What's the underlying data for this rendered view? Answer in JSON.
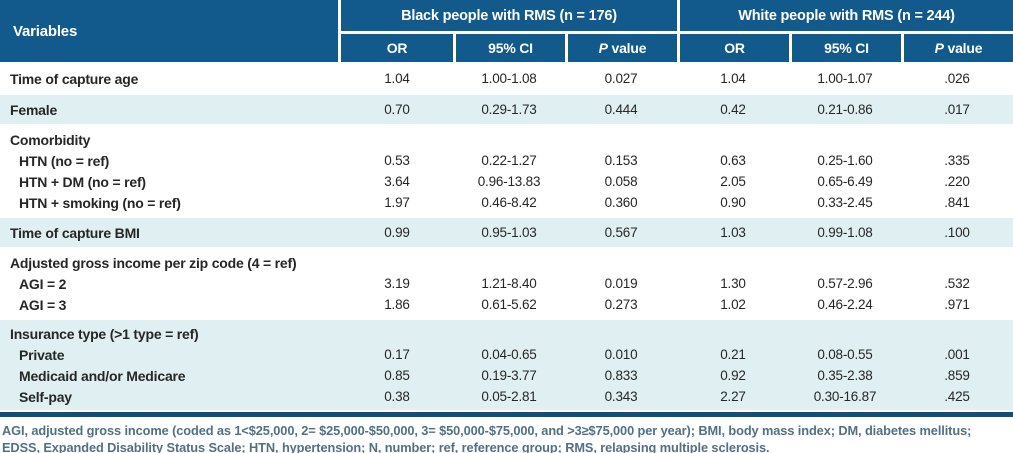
{
  "colors": {
    "header_blue": "#12598C",
    "band_tint": "#E0F0F2",
    "rule_blue": "#114E79",
    "footnote_text": "#527084"
  },
  "table": {
    "header": {
      "variables_label": "Variables",
      "groups": [
        {
          "label": "Black people with RMS (n = 176)",
          "cols": [
            "OR",
            "95% CI",
            "P value"
          ]
        },
        {
          "label": "White people with RMS (n = 244)",
          "cols": [
            "OR",
            "95% CI",
            "P value"
          ]
        }
      ]
    },
    "sections": [
      {
        "shade": "white",
        "lines": [
          {
            "label": "Time of capture age",
            "indent": 0,
            "values": [
              "1.04",
              "1.00-1.08",
              "0.027",
              "1.04",
              "1.00-1.07",
              ".026"
            ]
          }
        ]
      },
      {
        "shade": "blue",
        "lines": [
          {
            "label": "Female",
            "indent": 0,
            "values": [
              "0.70",
              "0.29-1.73",
              "0.444",
              "0.42",
              "0.21-0.86",
              ".017"
            ]
          }
        ]
      },
      {
        "shade": "white",
        "lines": [
          {
            "label": "Comorbidity",
            "indent": 0,
            "values": [
              "",
              "",
              "",
              "",
              "",
              ""
            ]
          },
          {
            "label": "HTN (no = ref)",
            "indent": 1,
            "values": [
              "0.53",
              "0.22-1.27",
              "0.153",
              "0.63",
              "0.25-1.60",
              ".335"
            ]
          },
          {
            "label": "HTN + DM (no = ref)",
            "indent": 1,
            "values": [
              "3.64",
              "0.96-13.83",
              "0.058",
              "2.05",
              "0.65-6.49",
              ".220"
            ]
          },
          {
            "label": "HTN + smoking (no = ref)",
            "indent": 1,
            "values": [
              "1.97",
              "0.46-8.42",
              "0.360",
              "0.90",
              "0.33-2.45",
              ".841"
            ]
          }
        ]
      },
      {
        "shade": "blue",
        "lines": [
          {
            "label": "Time of capture BMI",
            "indent": 0,
            "values": [
              "0.99",
              "0.95-1.03",
              "0.567",
              "1.03",
              "0.99-1.08",
              ".100"
            ]
          }
        ]
      },
      {
        "shade": "white",
        "lines": [
          {
            "label": "Adjusted gross income per zip code (4 = ref)",
            "indent": 0,
            "values": [
              "",
              "",
              "",
              "",
              "",
              ""
            ]
          },
          {
            "label": "AGI = 2",
            "indent": 1,
            "values": [
              "3.19",
              "1.21-8.40",
              "0.019",
              "1.30",
              "0.57-2.96",
              ".532"
            ]
          },
          {
            "label": "AGI = 3",
            "indent": 1,
            "values": [
              "1.86",
              "0.61-5.62",
              "0.273",
              "1.02",
              "0.46-2.24",
              ".971"
            ]
          }
        ]
      },
      {
        "shade": "blue",
        "lines": [
          {
            "label": "Insurance type (>1 type = ref)",
            "indent": 0,
            "values": [
              "",
              "",
              "",
              "",
              "",
              ""
            ]
          },
          {
            "label": "Private",
            "indent": 1,
            "values": [
              "0.17",
              "0.04-0.65",
              "0.010",
              "0.21",
              "0.08-0.55",
              ".001"
            ]
          },
          {
            "label": "Medicaid and/or Medicare",
            "indent": 1,
            "values": [
              "0.85",
              "0.19-3.77",
              "0.833",
              "0.92",
              "0.35-2.38",
              ".859"
            ]
          },
          {
            "label": "Self-pay",
            "indent": 1,
            "values": [
              "0.38",
              "0.05-2.81",
              "0.343",
              "2.27",
              "0.30-16.87",
              ".425"
            ]
          }
        ]
      }
    ]
  },
  "footnote": {
    "lines": [
      "AGI, adjusted gross income (coded as 1<$25,000, 2= $25,000-$50,000, 3= $50,000-$75,000, and >3≥$75,000 per year); BMI, body mass index; DM, diabetes mellitus;",
      "EDSS, Expanded Disability Status Scale; HTN, hypertension; N, number; ref, reference group; RMS, relapsing multiple sclerosis."
    ]
  }
}
